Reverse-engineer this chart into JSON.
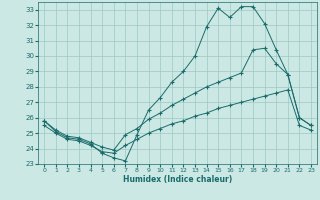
{
  "xlabel": "Humidex (Indice chaleur)",
  "bg_color": "#cce8e4",
  "grid_color": "#9dc8c2",
  "line_color": "#1a6b6b",
  "xlim": [
    -0.5,
    23.5
  ],
  "ylim": [
    23,
    33.5
  ],
  "xticks": [
    0,
    1,
    2,
    3,
    4,
    5,
    6,
    7,
    8,
    9,
    10,
    11,
    12,
    13,
    14,
    15,
    16,
    17,
    18,
    19,
    20,
    21,
    22,
    23
  ],
  "yticks": [
    23,
    24,
    25,
    26,
    27,
    28,
    29,
    30,
    31,
    32,
    33
  ],
  "series1_x": [
    0,
    1,
    2,
    3,
    4,
    5,
    6,
    7,
    8,
    9,
    10,
    11,
    12,
    13,
    14,
    15,
    16,
    17,
    18,
    19,
    20,
    21,
    22,
    23
  ],
  "series1_y": [
    25.8,
    25.1,
    24.7,
    24.6,
    24.3,
    23.7,
    23.4,
    23.2,
    24.9,
    26.5,
    27.3,
    28.3,
    29.0,
    30.0,
    31.9,
    33.1,
    32.5,
    33.2,
    33.2,
    32.1,
    30.4,
    28.8,
    26.0,
    25.5
  ],
  "series2_x": [
    0,
    1,
    2,
    3,
    4,
    5,
    6,
    7,
    8,
    9,
    10,
    11,
    12,
    13,
    14,
    15,
    16,
    17,
    18,
    19,
    20,
    21,
    22,
    23
  ],
  "series2_y": [
    25.8,
    25.2,
    24.8,
    24.7,
    24.4,
    24.1,
    23.9,
    24.9,
    25.3,
    25.9,
    26.3,
    26.8,
    27.2,
    27.6,
    28.0,
    28.3,
    28.6,
    28.9,
    30.4,
    30.5,
    29.5,
    28.8,
    26.0,
    25.5
  ],
  "series3_x": [
    0,
    1,
    2,
    3,
    4,
    5,
    6,
    7,
    8,
    9,
    10,
    11,
    12,
    13,
    14,
    15,
    16,
    17,
    18,
    19,
    20,
    21,
    22,
    23
  ],
  "series3_y": [
    25.5,
    25.0,
    24.6,
    24.5,
    24.2,
    23.8,
    23.7,
    24.2,
    24.6,
    25.0,
    25.3,
    25.6,
    25.8,
    26.1,
    26.3,
    26.6,
    26.8,
    27.0,
    27.2,
    27.4,
    27.6,
    27.8,
    25.5,
    25.2
  ]
}
